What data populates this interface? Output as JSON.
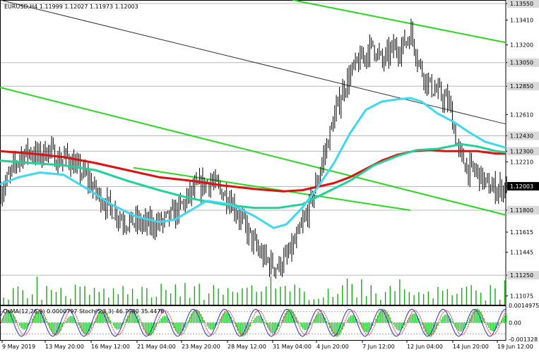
{
  "chart_data": {
    "type": "candlestick",
    "symbol_info": "EURUSD,H4  1.11999 1.12027 1.11973 1.12003",
    "oscillator_info": "OsMA(12,26,9) 0.0000797  Stoch(5,3,3) 46.7980 35.4476",
    "y_axis": {
      "ylim": [
        1.11,
        1.1358
      ],
      "tick_labels": [
        "1.13550",
        "1.13410",
        "1.13200",
        "1.13050",
        "1.12850",
        "1.12610",
        "1.12430",
        "1.12300",
        "1.12210",
        "1.12003",
        "1.11800",
        "1.11615",
        "1.11445",
        "1.11250",
        "1.11075"
      ],
      "highlighted_levels": [
        "1.13550",
        "1.13050",
        "1.12850",
        "1.12430",
        "1.12300",
        "1.12003",
        "1.11800",
        "1.11250"
      ]
    },
    "x_axis": {
      "tick_labels": [
        "9 May 2019",
        "13 May 20:00",
        "16 May 12:00",
        "21 May 04:00",
        "23 May 20:00",
        "28 May 12:00",
        "31 May 04:00",
        "4 Jun 20:00",
        "7 Jun 12:00",
        "12 Jun 04:00",
        "14 Jun 20:00",
        "19 Jun 12:00"
      ]
    },
    "current_price": "1.12003",
    "close_path": [
      [
        0,
        1.1196
      ],
      [
        6,
        1.121
      ],
      [
        12,
        1.1226
      ],
      [
        18,
        1.123
      ],
      [
        24,
        1.1226
      ],
      [
        30,
        1.1232
      ],
      [
        36,
        1.1222
      ],
      [
        42,
        1.1225
      ],
      [
        48,
        1.1215
      ],
      [
        54,
        1.1208
      ],
      [
        60,
        1.1195
      ],
      [
        66,
        1.1186
      ],
      [
        72,
        1.1178
      ],
      [
        78,
        1.1171
      ],
      [
        84,
        1.117
      ],
      [
        90,
        1.1168
      ],
      [
        96,
        1.1168
      ],
      [
        102,
        1.117
      ],
      [
        108,
        1.1176
      ],
      [
        114,
        1.1184
      ],
      [
        120,
        1.1195
      ],
      [
        126,
        1.1201
      ],
      [
        132,
        1.1205
      ],
      [
        138,
        1.1197
      ],
      [
        144,
        1.119
      ],
      [
        150,
        1.1175
      ],
      [
        156,
        1.116
      ],
      [
        162,
        1.1145
      ],
      [
        168,
        1.1136
      ],
      [
        174,
        1.1132
      ],
      [
        180,
        1.114
      ],
      [
        186,
        1.1155
      ],
      [
        192,
        1.1175
      ],
      [
        198,
        1.12
      ],
      [
        204,
        1.123
      ],
      [
        210,
        1.126
      ],
      [
        216,
        1.1285
      ],
      [
        222,
        1.13
      ],
      [
        228,
        1.131
      ],
      [
        234,
        1.132
      ],
      [
        240,
        1.1305
      ],
      [
        246,
        1.1316
      ],
      [
        252,
        1.1318
      ],
      [
        258,
        1.133
      ],
      [
        264,
        1.13
      ],
      [
        270,
        1.1285
      ],
      [
        276,
        1.1278
      ],
      [
        282,
        1.127
      ],
      [
        288,
        1.1228
      ],
      [
        294,
        1.1215
      ],
      [
        300,
        1.1212
      ],
      [
        306,
        1.12
      ],
      [
        312,
        1.1198
      ],
      [
        318,
        1.12
      ]
    ],
    "series": [
      {
        "name": "",
        "color": "#e01010",
        "values": [
          [
            0,
            1.123
          ],
          [
            20,
            1.1228
          ],
          [
            40,
            1.1225
          ],
          [
            60,
            1.122
          ],
          [
            80,
            1.1214
          ],
          [
            100,
            1.1208
          ],
          [
            120,
            1.1205
          ],
          [
            140,
            1.1201
          ],
          [
            160,
            1.1198
          ],
          [
            178,
            1.1196
          ],
          [
            190,
            1.1197
          ],
          [
            200,
            1.12
          ],
          [
            210,
            1.1203
          ],
          [
            220,
            1.1208
          ],
          [
            230,
            1.1215
          ],
          [
            240,
            1.1222
          ],
          [
            250,
            1.1227
          ],
          [
            260,
            1.123
          ],
          [
            270,
            1.1231
          ],
          [
            280,
            1.123
          ],
          [
            290,
            1.123
          ],
          [
            300,
            1.123
          ],
          [
            312,
            1.1228
          ],
          [
            318,
            1.1228
          ]
        ]
      },
      {
        "name": "",
        "color": "#1ed398",
        "values": [
          [
            0,
            1.1222
          ],
          [
            20,
            1.122
          ],
          [
            40,
            1.1218
          ],
          [
            60,
            1.1214
          ],
          [
            80,
            1.1205
          ],
          [
            100,
            1.1197
          ],
          [
            120,
            1.119
          ],
          [
            140,
            1.1185
          ],
          [
            160,
            1.1182
          ],
          [
            175,
            1.1182
          ],
          [
            190,
            1.1185
          ],
          [
            205,
            1.1195
          ],
          [
            220,
            1.1205
          ],
          [
            235,
            1.1218
          ],
          [
            250,
            1.1226
          ],
          [
            262,
            1.1231
          ],
          [
            275,
            1.1232
          ],
          [
            290,
            1.1236
          ],
          [
            300,
            1.1234
          ],
          [
            312,
            1.123
          ],
          [
            318,
            1.1229
          ]
        ]
      },
      {
        "name": "",
        "color": "#3dd9f0",
        "values": [
          [
            0,
            1.1202
          ],
          [
            12,
            1.1208
          ],
          [
            25,
            1.1212
          ],
          [
            40,
            1.121
          ],
          [
            55,
            1.1198
          ],
          [
            70,
            1.1185
          ],
          [
            85,
            1.1175
          ],
          [
            100,
            1.117
          ],
          [
            110,
            1.1172
          ],
          [
            120,
            1.118
          ],
          [
            130,
            1.1188
          ],
          [
            145,
            1.1185
          ],
          [
            160,
            1.1175
          ],
          [
            172,
            1.1165
          ],
          [
            180,
            1.1168
          ],
          [
            190,
            1.1182
          ],
          [
            200,
            1.12
          ],
          [
            210,
            1.122
          ],
          [
            220,
            1.1245
          ],
          [
            230,
            1.1265
          ],
          [
            240,
            1.1272
          ],
          [
            250,
            1.1274
          ],
          [
            258,
            1.1275
          ],
          [
            265,
            1.1272
          ],
          [
            275,
            1.1262
          ],
          [
            285,
            1.1255
          ],
          [
            295,
            1.1246
          ],
          [
            305,
            1.1238
          ],
          [
            318,
            1.1233
          ]
        ]
      }
    ],
    "channels": [
      {
        "color": "#2ad81f",
        "points": [
          [
            0,
            1.1284
          ],
          [
            318,
            1.1176
          ]
        ]
      },
      {
        "color": "#2ad81f",
        "points": [
          [
            184,
            1.1358
          ],
          [
            318,
            1.1322
          ]
        ]
      },
      {
        "color": "#2ad81f",
        "points": [
          [
            84,
            1.1216
          ],
          [
            258,
            1.118
          ]
        ]
      },
      {
        "color": "#333333",
        "points": [
          [
            0,
            1.1358
          ],
          [
            318,
            1.1253
          ]
        ]
      }
    ],
    "levels": [
      1.1355,
      1.1305,
      1.1285,
      1.1243,
      1.123,
      1.12,
      1.118,
      1.1125
    ],
    "oscillator": {
      "range": [
        -0.0014,
        0.0014
      ],
      "tick_labels": [
        "0.0014975",
        "0.00",
        "-0.001328"
      ]
    }
  }
}
